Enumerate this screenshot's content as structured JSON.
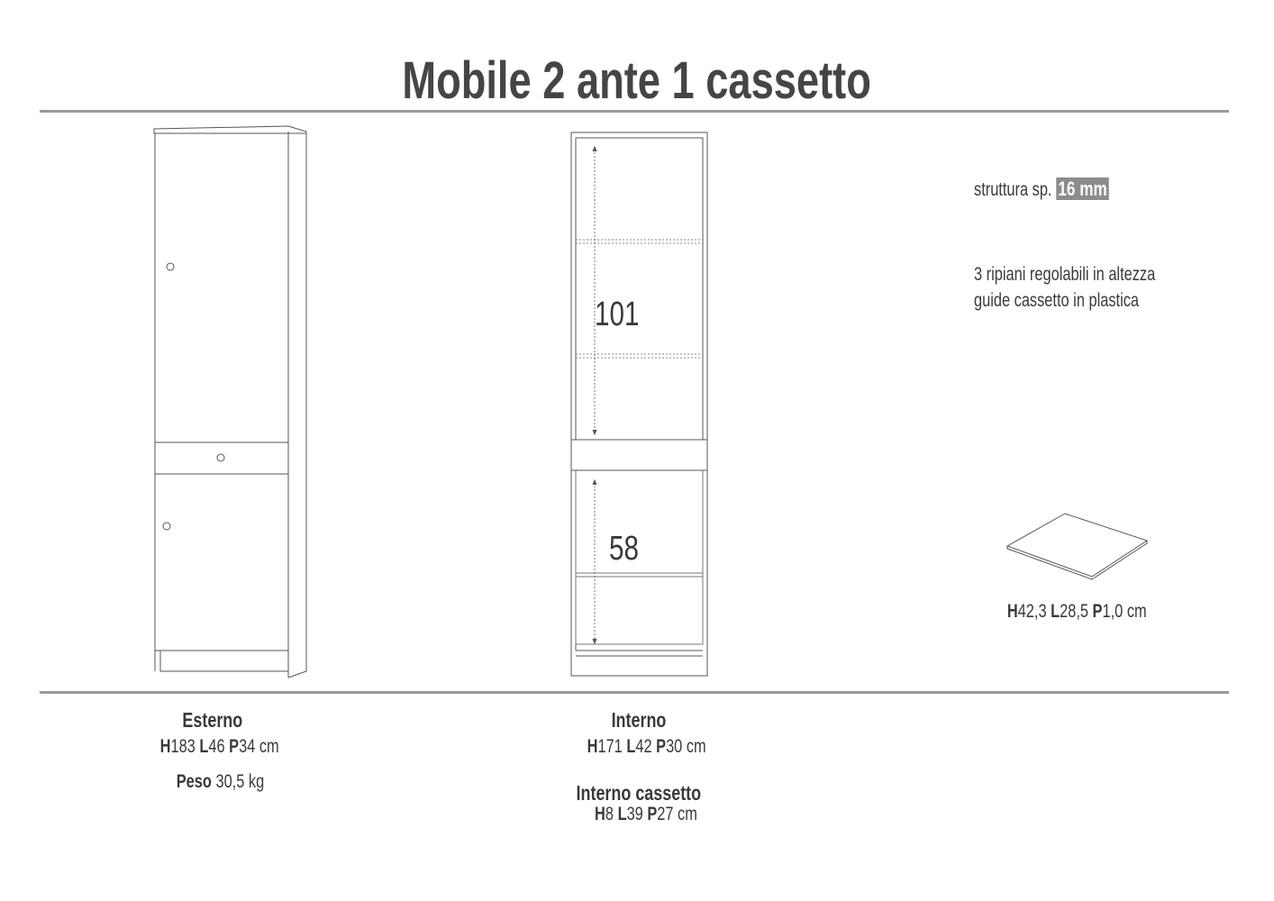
{
  "title": "Mobile 2 ante 1 cassetto",
  "drawing": {
    "inner_upper_height": "101",
    "inner_lower_height": "58"
  },
  "specs": {
    "structure_label": "struttura sp.",
    "structure_thickness": "16 mm",
    "features": [
      "3 ripiani regolabili in altezza",
      "guide cassetto in plastica"
    ],
    "shelf_dims": {
      "H": "H",
      "h_val": "42,3",
      "L": "L",
      "l_val": "28,5",
      "P": "P",
      "p_val": "1,0",
      "unit": "cm"
    }
  },
  "external": {
    "heading": "Esterno",
    "H": "H",
    "h_val": "183",
    "L": "L",
    "l_val": "46",
    "P": "P",
    "p_val": "34",
    "unit": "cm",
    "weight_label": "Peso",
    "weight_val": "30,5 kg"
  },
  "internal": {
    "heading": "Interno",
    "H": "H",
    "h_val": "171",
    "L": "L",
    "l_val": "42",
    "P": "P",
    "p_val": "30",
    "unit": "cm"
  },
  "drawer": {
    "heading": "Interno cassetto",
    "H": "H",
    "h_val": "8",
    "L": "L",
    "l_val": "39",
    "P": "P",
    "p_val": "27",
    "unit": "cm"
  }
}
